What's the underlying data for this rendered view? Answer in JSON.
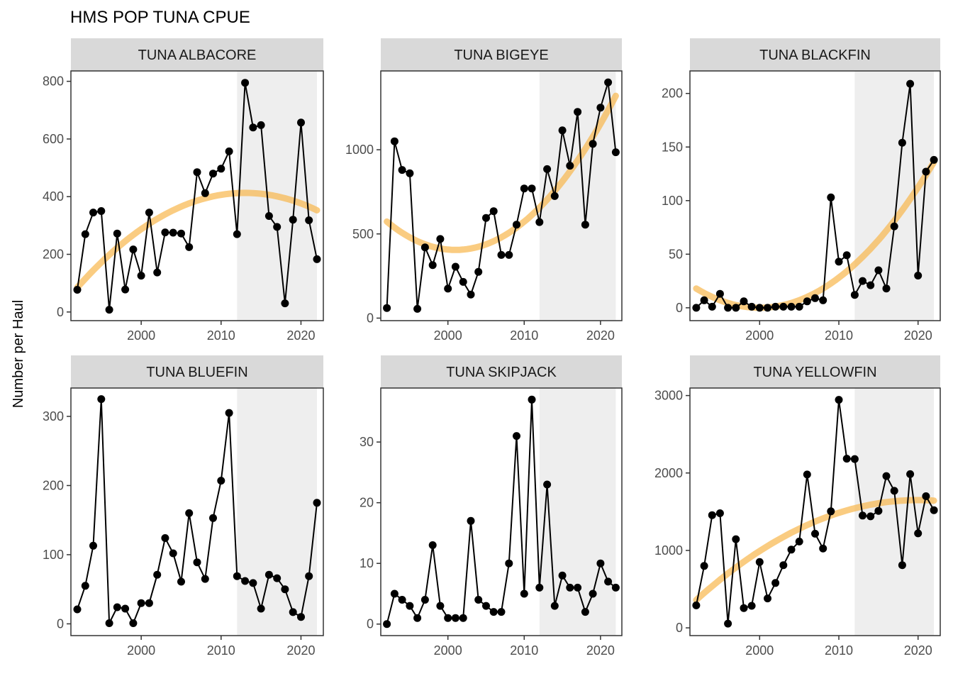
{
  "figure": {
    "title": "HMS POP TUNA CPUE",
    "ylabel": "Number per Haul"
  },
  "colors": {
    "line": "#000000",
    "point": "#000000",
    "trend": "#f8b64c",
    "shade": "#eeeeee",
    "strip": "#d9d9d9",
    "axis": "#333333"
  },
  "chart_data": [
    {
      "type": "line",
      "panel": "TUNA ALBACORE",
      "x": [
        1992,
        1993,
        1994,
        1995,
        1996,
        1997,
        1998,
        1999,
        2000,
        2001,
        2002,
        2003,
        2004,
        2005,
        2006,
        2007,
        2008,
        2009,
        2010,
        2011,
        2012,
        2013,
        2014,
        2015,
        2016,
        2017,
        2018,
        2019,
        2020,
        2021,
        2022
      ],
      "y": [
        77,
        270,
        345,
        350,
        8,
        272,
        78,
        217,
        126,
        345,
        137,
        276,
        275,
        272,
        225,
        485,
        412,
        480,
        497,
        557,
        270,
        795,
        640,
        648,
        333,
        295,
        30,
        320,
        657,
        318,
        183
      ],
      "trend": {
        "y_start": 85,
        "peak_x": 2013,
        "peak_y": 413,
        "y_end": 355
      },
      "shaded_x": [
        2012,
        2022
      ],
      "xlim": [
        1991.2,
        2022.8
      ],
      "ylim": [
        -30,
        836
      ],
      "xticks": [
        2000,
        2010,
        2020
      ],
      "yticks": [
        0,
        200,
        400,
        600,
        800
      ],
      "xlabels": [
        "2000",
        "2010",
        "2020"
      ],
      "ylabels": [
        "0",
        "200",
        "400",
        "600",
        "800"
      ]
    },
    {
      "type": "line",
      "panel": "TUNA BIGEYE",
      "x": [
        1992,
        1993,
        1994,
        1995,
        1996,
        1997,
        1998,
        1999,
        2000,
        2001,
        2002,
        2003,
        2004,
        2005,
        2006,
        2007,
        2008,
        2009,
        2010,
        2011,
        2012,
        2013,
        2014,
        2015,
        2016,
        2017,
        2018,
        2019,
        2020,
        2021,
        2022
      ],
      "y": [
        60,
        1050,
        880,
        860,
        55,
        420,
        315,
        470,
        175,
        305,
        215,
        140,
        275,
        595,
        635,
        375,
        375,
        555,
        770,
        770,
        570,
        885,
        725,
        1115,
        905,
        1225,
        555,
        1035,
        1250,
        1400,
        985
      ],
      "trend": {
        "y_start": 570,
        "trough_x": 2001,
        "trough_y": 405,
        "y_end": 1320
      },
      "shaded_x": [
        2012,
        2022
      ],
      "xlim": [
        1991.2,
        2022.8
      ],
      "ylim": [
        -15,
        1468
      ],
      "xticks": [
        2000,
        2010,
        2020
      ],
      "yticks": [
        0,
        500,
        1000
      ],
      "xlabels": [
        "2000",
        "2010",
        "2020"
      ],
      "ylabels": [
        "0",
        "500",
        "1000"
      ]
    },
    {
      "type": "line",
      "panel": "TUNA BLACKFIN",
      "x": [
        1992,
        1993,
        1994,
        1995,
        1996,
        1997,
        1998,
        1999,
        2000,
        2001,
        2002,
        2003,
        2004,
        2005,
        2006,
        2007,
        2008,
        2009,
        2010,
        2011,
        2012,
        2013,
        2014,
        2015,
        2016,
        2017,
        2018,
        2019,
        2020,
        2021,
        2022
      ],
      "y": [
        0,
        7,
        1,
        13,
        0,
        0,
        6,
        1,
        0,
        0,
        1,
        1,
        1,
        1,
        6,
        9,
        7,
        103,
        43,
        49,
        12,
        25,
        21,
        35,
        18,
        76,
        154,
        209,
        30,
        127,
        138
      ],
      "trend": {
        "y_start": 12,
        "trough_x": 2000,
        "trough_y": 0,
        "y_end": 136
      },
      "shaded_x": [
        2012,
        2022
      ],
      "xlim": [
        1991.2,
        2022.8
      ],
      "ylim": [
        -12,
        221
      ],
      "xticks": [
        2000,
        2010,
        2020
      ],
      "yticks": [
        0,
        50,
        100,
        150,
        200
      ],
      "xlabels": [
        "2000",
        "2010",
        "2020"
      ],
      "ylabels": [
        "0",
        "50",
        "100",
        "150",
        "200"
      ]
    },
    {
      "type": "line",
      "panel": "TUNA BLUEFIN",
      "x": [
        1992,
        1993,
        1994,
        1995,
        1996,
        1997,
        1998,
        1999,
        2000,
        2001,
        2002,
        2003,
        2004,
        2005,
        2006,
        2007,
        2008,
        2009,
        2010,
        2011,
        2012,
        2013,
        2014,
        2015,
        2016,
        2017,
        2018,
        2019,
        2020,
        2021,
        2022
      ],
      "y": [
        21,
        55,
        113,
        325,
        1,
        24,
        22,
        1,
        30,
        30,
        71,
        124,
        102,
        61,
        160,
        89,
        65,
        153,
        207,
        305,
        69,
        62,
        59,
        22,
        71,
        66,
        50,
        17,
        10,
        69,
        175
      ],
      "trend": null,
      "shaded_x": [
        2012,
        2022
      ],
      "xlim": [
        1991.2,
        2022.8
      ],
      "ylim": [
        -17,
        341
      ],
      "xticks": [
        2000,
        2010,
        2020
      ],
      "yticks": [
        0,
        100,
        200,
        300
      ],
      "xlabels": [
        "2000",
        "2010",
        "2020"
      ],
      "ylabels": [
        "0",
        "100",
        "200",
        "300"
      ]
    },
    {
      "type": "line",
      "panel": "TUNA SKIPJACK",
      "x": [
        1992,
        1993,
        1994,
        1995,
        1996,
        1997,
        1998,
        1999,
        2000,
        2001,
        2002,
        2003,
        2004,
        2005,
        2006,
        2007,
        2008,
        2009,
        2010,
        2011,
        2012,
        2013,
        2014,
        2015,
        2016,
        2017,
        2018,
        2019,
        2020,
        2021,
        2022
      ],
      "y": [
        0,
        5,
        4,
        3,
        1,
        4,
        13,
        3,
        1,
        1,
        1,
        17,
        4,
        3,
        2,
        2,
        10,
        31,
        5,
        37,
        6,
        23,
        3,
        8,
        6,
        6,
        2,
        5,
        10,
        7,
        6
      ],
      "trend": null,
      "shaded_x": [
        2012,
        2022
      ],
      "xlim": [
        1991.2,
        2022.8
      ],
      "ylim": [
        -1.9,
        38.9
      ],
      "xticks": [
        2000,
        2010,
        2020
      ],
      "yticks": [
        0,
        10,
        20,
        30
      ],
      "xlabels": [
        "2000",
        "2010",
        "2020"
      ],
      "ylabels": [
        "0",
        "10",
        "20",
        "30"
      ]
    },
    {
      "type": "line",
      "panel": "TUNA YELLOWFIN",
      "x": [
        1992,
        1993,
        1994,
        1995,
        1996,
        1997,
        1998,
        1999,
        2000,
        2001,
        2002,
        2003,
        2004,
        2005,
        2006,
        2007,
        2008,
        2009,
        2010,
        2011,
        2012,
        2013,
        2014,
        2015,
        2016,
        2017,
        2018,
        2019,
        2020,
        2021,
        2022
      ],
      "y": [
        290,
        800,
        1455,
        1480,
        55,
        1145,
        255,
        285,
        850,
        380,
        580,
        810,
        1010,
        1115,
        1980,
        1215,
        1025,
        1505,
        2945,
        2185,
        2180,
        1450,
        1440,
        1510,
        1960,
        1770,
        810,
        1985,
        1220,
        1700,
        1520
      ],
      "trend": {
        "y_start": 360,
        "peak_x": 2020,
        "peak_y": 1650,
        "y_end": 1640
      },
      "shaded_x": [
        2012,
        2022
      ],
      "xlim": [
        1991.2,
        2022.8
      ],
      "ylim": [
        -100,
        3097
      ],
      "xticks": [
        2000,
        2010,
        2020
      ],
      "yticks": [
        0,
        1000,
        2000,
        3000
      ],
      "xlabels": [
        "2000",
        "2010",
        "2020"
      ],
      "ylabels": [
        "0",
        "1000",
        "2000",
        "3000"
      ]
    }
  ]
}
